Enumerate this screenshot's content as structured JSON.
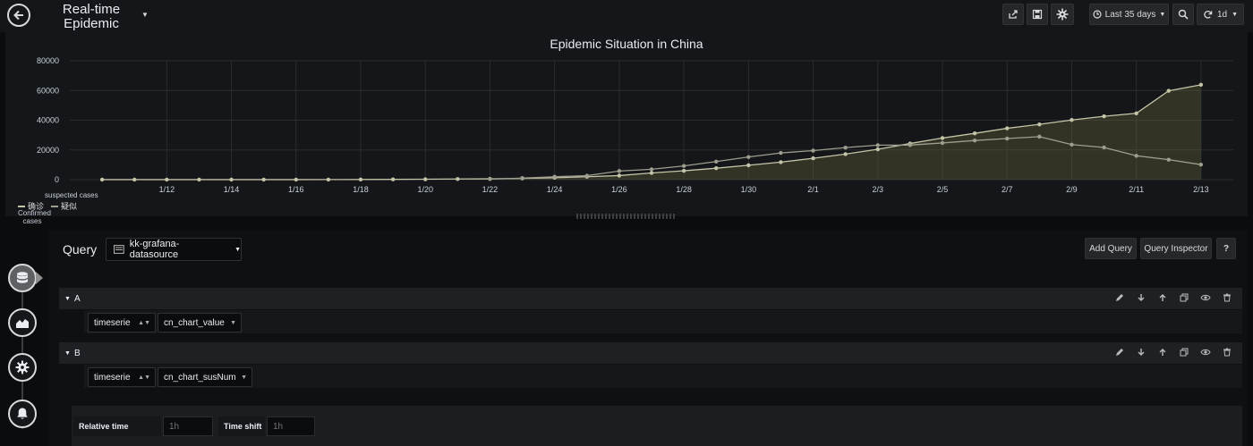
{
  "header": {
    "title": "Real-time Epidemic Situation",
    "time_range_label": "Last 35 days",
    "refresh_label": "1d",
    "icons": [
      "back-icon",
      "share-icon",
      "save-icon",
      "settings-icon",
      "clock-icon",
      "zoom-out-icon",
      "refresh-icon"
    ]
  },
  "chart_data": {
    "type": "line",
    "title": "Epidemic Situation in China",
    "x_ticks": [
      "1/12",
      "1/14",
      "1/16",
      "1/18",
      "1/20",
      "1/22",
      "1/24",
      "1/26",
      "1/28",
      "1/30",
      "2/1",
      "2/3",
      "2/5",
      "2/7",
      "2/9",
      "2/11",
      "2/13"
    ],
    "ylim": [
      0,
      80000
    ],
    "y_ticks": [
      0,
      20000,
      40000,
      60000,
      80000
    ],
    "grid": true,
    "legend_placement": "bottom-left",
    "series": [
      {
        "name": "确诊",
        "color": "#c4c4a8",
        "fill": true,
        "points": [
          [
            "1/10",
            41
          ],
          [
            "1/11",
            41
          ],
          [
            "1/12",
            41
          ],
          [
            "1/13",
            41
          ],
          [
            "1/14",
            41
          ],
          [
            "1/15",
            41
          ],
          [
            "1/16",
            45
          ],
          [
            "1/17",
            62
          ],
          [
            "1/18",
            121
          ],
          [
            "1/19",
            198
          ],
          [
            "1/20",
            291
          ],
          [
            "1/21",
            440
          ],
          [
            "1/22",
            571
          ],
          [
            "1/23",
            830
          ],
          [
            "1/24",
            1287
          ],
          [
            "1/25",
            1975
          ],
          [
            "1/26",
            2744
          ],
          [
            "1/27",
            4515
          ],
          [
            "1/28",
            5974
          ],
          [
            "1/29",
            7711
          ],
          [
            "1/30",
            9692
          ],
          [
            "1/31",
            11791
          ],
          [
            "2/1",
            14380
          ],
          [
            "2/2",
            17205
          ],
          [
            "2/3",
            20438
          ],
          [
            "2/4",
            24324
          ],
          [
            "2/5",
            28018
          ],
          [
            "2/6",
            31161
          ],
          [
            "2/7",
            34546
          ],
          [
            "2/8",
            37198
          ],
          [
            "2/9",
            40171
          ],
          [
            "2/10",
            42638
          ],
          [
            "2/11",
            44653
          ],
          [
            "2/12",
            59804
          ],
          [
            "2/13",
            63851
          ]
        ]
      },
      {
        "name": "疑似",
        "color": "#9e9e8e",
        "fill": false,
        "points": [
          [
            "1/22",
            393
          ],
          [
            "1/23",
            1072
          ],
          [
            "1/24",
            1965
          ],
          [
            "1/25",
            2684
          ],
          [
            "1/26",
            5794
          ],
          [
            "1/27",
            6973
          ],
          [
            "1/28",
            9239
          ],
          [
            "1/29",
            12167
          ],
          [
            "1/30",
            15238
          ],
          [
            "1/31",
            17988
          ],
          [
            "2/1",
            19544
          ],
          [
            "2/2",
            21558
          ],
          [
            "2/3",
            23214
          ],
          [
            "2/4",
            23260
          ],
          [
            "2/5",
            24702
          ],
          [
            "2/6",
            26359
          ],
          [
            "2/7",
            27657
          ],
          [
            "2/8",
            28942
          ],
          [
            "2/9",
            23589
          ],
          [
            "2/10",
            21675
          ],
          [
            "2/11",
            16067
          ],
          [
            "2/12",
            13435
          ],
          [
            "2/13",
            10109
          ]
        ]
      }
    ]
  },
  "annotations": {
    "suspected": "suspected cases",
    "confirmed": "Confirmed cases"
  },
  "editor": {
    "query_label": "Query",
    "datasource": "kk-grafana-datasource",
    "add_query": "Add Query",
    "query_inspector": "Query Inspector",
    "help": "?",
    "queries": [
      {
        "ref": "A",
        "type": "timeserie",
        "metric": "cn_chart_value"
      },
      {
        "ref": "B",
        "type": "timeserie",
        "metric": "cn_chart_susNum"
      }
    ],
    "options": {
      "relative_time_label": "Relative time",
      "relative_time_placeholder": "1h",
      "time_shift_label": "Time shift",
      "time_shift_placeholder": "1h"
    }
  },
  "rail": [
    "database-icon",
    "chart-icon",
    "settings-icon",
    "bell-icon"
  ]
}
